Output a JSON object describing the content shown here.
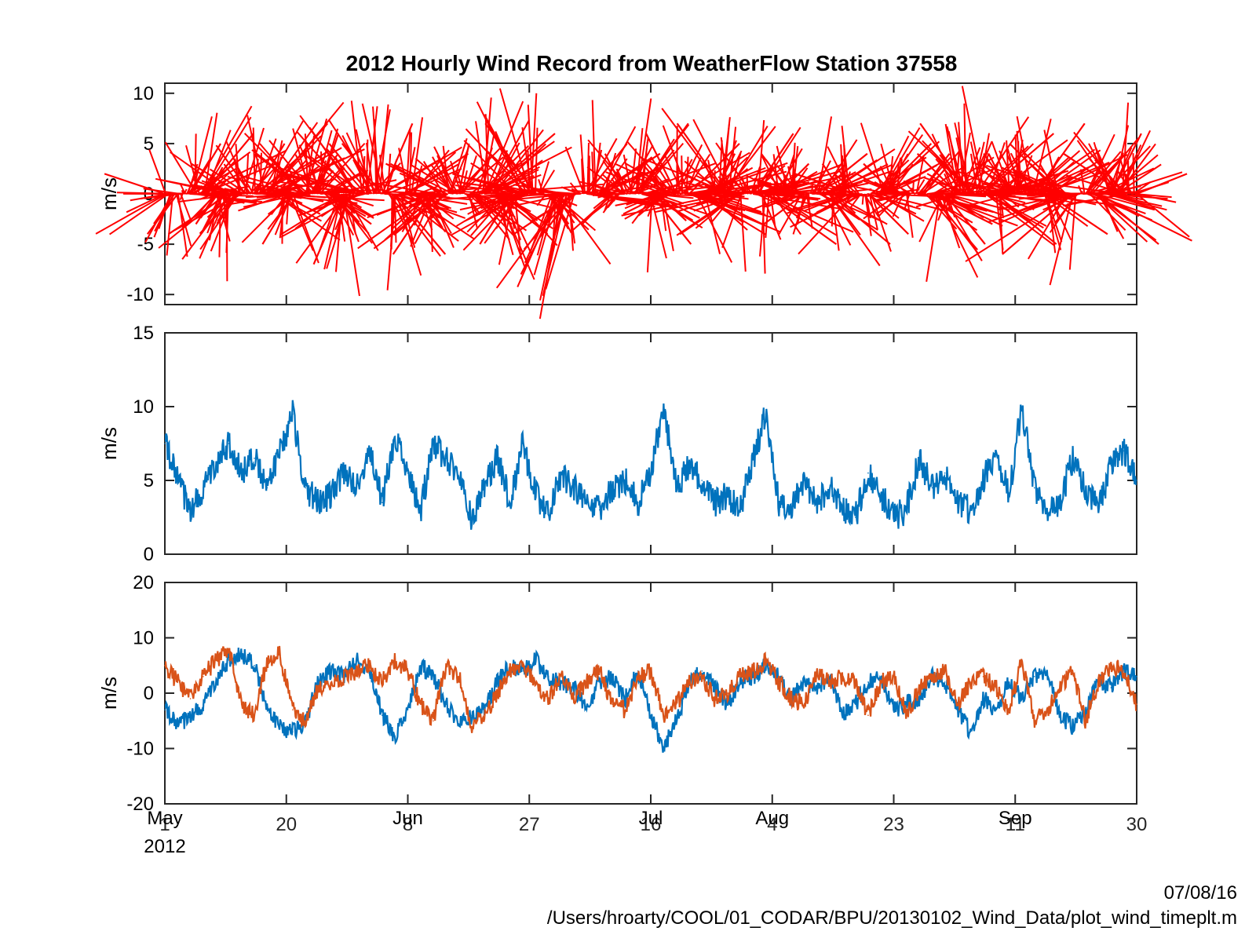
{
  "chart_data": [
    {
      "panel": "wind-vectors",
      "type": "stick",
      "title": "2012 Hourly Wind Record from WeatherFlow Station 37558",
      "ylabel": "m/s",
      "ylim": [
        -11,
        11
      ],
      "yticks": [
        -10,
        -5,
        0,
        5,
        10
      ],
      "xlim": [
        "2012-05-01",
        "2012-09-30"
      ],
      "color": "#ff0000",
      "series": [
        {
          "x": [
            "2012-05-01",
            "2012-05-03",
            "2012-05-05",
            "2012-05-07",
            "2012-05-09",
            "2012-05-11",
            "2012-05-13",
            "2012-05-15",
            "2012-05-17",
            "2012-05-19",
            "2012-05-21",
            "2012-05-23",
            "2012-05-25",
            "2012-05-27",
            "2012-05-29",
            "2012-05-31",
            "2012-06-02",
            "2012-06-04",
            "2012-06-06",
            "2012-06-08",
            "2012-06-10",
            "2012-06-12",
            "2012-06-14",
            "2012-06-16",
            "2012-06-18",
            "2012-06-20",
            "2012-06-22",
            "2012-06-24",
            "2012-06-26",
            "2012-06-28",
            "2012-06-30",
            "2012-07-02",
            "2012-07-04",
            "2012-07-06",
            "2012-07-08",
            "2012-07-10",
            "2012-07-12",
            "2012-07-14",
            "2012-07-16",
            "2012-07-18",
            "2012-07-20",
            "2012-07-22",
            "2012-07-24",
            "2012-07-26",
            "2012-07-28",
            "2012-07-30",
            "2012-08-01",
            "2012-08-03",
            "2012-08-05",
            "2012-08-07",
            "2012-08-09",
            "2012-08-11",
            "2012-08-13",
            "2012-08-15",
            "2012-08-17",
            "2012-08-19",
            "2012-08-21",
            "2012-08-23",
            "2012-08-25",
            "2012-08-27",
            "2012-08-29",
            "2012-08-31",
            "2012-09-02",
            "2012-09-04",
            "2012-09-06",
            "2012-09-08",
            "2012-09-10",
            "2012-09-12",
            "2012-09-14",
            "2012-09-16",
            "2012-09-18",
            "2012-09-20",
            "2012-09-22",
            "2012-09-24",
            "2012-09-26",
            "2012-09-28",
            "2012-09-30"
          ],
          "u": [
            -6,
            -3,
            3,
            5,
            -2,
            -6,
            -5,
            3,
            6,
            4,
            -3,
            -5,
            2,
            4,
            -3,
            -7,
            -4,
            3,
            5,
            6,
            2,
            -4,
            -6,
            1,
            4,
            7,
            5,
            -3,
            -7,
            -5,
            2,
            -4,
            -6,
            4,
            6,
            -3,
            -2,
            5,
            4,
            -4,
            -3,
            5,
            6,
            2,
            -5,
            -6,
            4,
            7,
            3,
            -3,
            -4,
            5,
            6,
            -2,
            -6,
            4,
            5,
            -3,
            -3,
            3,
            6,
            4,
            -4,
            -5,
            7,
            6,
            -2,
            -4,
            5,
            6,
            -5,
            -7,
            4,
            6,
            3,
            -6,
            5
          ],
          "v": [
            2,
            -4,
            5,
            6,
            -3,
            -4,
            3,
            5,
            7,
            -2,
            -5,
            4,
            6,
            -3,
            -7,
            2,
            5,
            7,
            -6,
            4,
            -2,
            -6,
            3,
            5,
            -3,
            6,
            -4,
            -5,
            2,
            7,
            -3,
            -8,
            -4,
            5,
            4,
            -3,
            4,
            7,
            -5,
            -2,
            6,
            5,
            -3,
            4,
            7,
            -4,
            6,
            -5,
            3,
            4,
            -3,
            4,
            -5,
            3,
            2,
            -4,
            5,
            3,
            -2,
            4,
            -3,
            -5,
            4,
            7,
            6,
            -5,
            4,
            3,
            7,
            -4,
            5,
            -6,
            4,
            -5,
            6,
            4,
            2
          ]
        }
      ]
    },
    {
      "panel": "wind-speed",
      "type": "line",
      "ylabel": "m/s",
      "ylim": [
        0,
        15
      ],
      "yticks": [
        0,
        5,
        10,
        15
      ],
      "xlim": [
        "2012-05-01",
        "2012-09-30"
      ],
      "series": [
        {
          "color": "#0072bd",
          "x": [
            "2012-05-01",
            "2012-05-03",
            "2012-05-05",
            "2012-05-07",
            "2012-05-09",
            "2012-05-11",
            "2012-05-13",
            "2012-05-15",
            "2012-05-17",
            "2012-05-19",
            "2012-05-21",
            "2012-05-23",
            "2012-05-25",
            "2012-05-27",
            "2012-05-29",
            "2012-05-31",
            "2012-06-02",
            "2012-06-04",
            "2012-06-06",
            "2012-06-08",
            "2012-06-10",
            "2012-06-12",
            "2012-06-14",
            "2012-06-16",
            "2012-06-18",
            "2012-06-20",
            "2012-06-22",
            "2012-06-24",
            "2012-06-26",
            "2012-06-28",
            "2012-06-30",
            "2012-07-02",
            "2012-07-04",
            "2012-07-06",
            "2012-07-08",
            "2012-07-10",
            "2012-07-12",
            "2012-07-14",
            "2012-07-16",
            "2012-07-18",
            "2012-07-20",
            "2012-07-22",
            "2012-07-24",
            "2012-07-26",
            "2012-07-28",
            "2012-07-30",
            "2012-08-01",
            "2012-08-03",
            "2012-08-05",
            "2012-08-07",
            "2012-08-09",
            "2012-08-11",
            "2012-08-13",
            "2012-08-15",
            "2012-08-17",
            "2012-08-19",
            "2012-08-21",
            "2012-08-23",
            "2012-08-25",
            "2012-08-27",
            "2012-08-29",
            "2012-08-31",
            "2012-09-02",
            "2012-09-04",
            "2012-09-06",
            "2012-09-08",
            "2012-09-10",
            "2012-09-12",
            "2012-09-14",
            "2012-09-16",
            "2012-09-18",
            "2012-09-20",
            "2012-09-22",
            "2012-09-24",
            "2012-09-26",
            "2012-09-28",
            "2012-09-30"
          ],
          "values": [
            7.5,
            5.0,
            3.0,
            4.5,
            6.0,
            7.5,
            5.5,
            6.5,
            4.5,
            7.0,
            9.5,
            4.5,
            3.5,
            4.0,
            5.5,
            4.5,
            7.0,
            3.5,
            8.0,
            5.5,
            3.0,
            7.5,
            6.5,
            5.0,
            2.5,
            4.5,
            6.5,
            3.5,
            7.5,
            4.0,
            3.0,
            5.5,
            4.5,
            3.5,
            3.0,
            4.5,
            5.0,
            3.5,
            5.5,
            10.0,
            4.5,
            6.0,
            5.0,
            3.5,
            4.0,
            3.0,
            6.5,
            9.5,
            3.5,
            3.0,
            5.0,
            3.5,
            4.5,
            3.0,
            2.5,
            5.5,
            4.0,
            2.5,
            3.0,
            6.5,
            4.5,
            5.5,
            3.5,
            3.0,
            5.0,
            7.0,
            4.0,
            10.0,
            4.5,
            3.0,
            3.5,
            6.5,
            4.5,
            3.0,
            6.0,
            7.0,
            5.0
          ]
        }
      ]
    },
    {
      "panel": "wind-components",
      "type": "line",
      "ylabel": "m/s",
      "ylim": [
        -20,
        20
      ],
      "yticks": [
        -20,
        -10,
        0,
        10,
        20
      ],
      "xlim": [
        "2012-05-01",
        "2012-09-30"
      ],
      "xticks": [
        "2012-05-01",
        "2012-05-20",
        "2012-06-08",
        "2012-06-27",
        "2012-07-16",
        "2012-08-04",
        "2012-08-23",
        "2012-09-11",
        "2012-09-30"
      ],
      "xticklabels": [
        "1",
        "20",
        "8",
        "27",
        "16",
        "4",
        "23",
        "11",
        "30"
      ],
      "month_labels": [
        {
          "x": "2012-05-01",
          "text": "May"
        },
        {
          "x": "2012-06-08",
          "text": "Jun"
        },
        {
          "x": "2012-07-16",
          "text": "Jul"
        },
        {
          "x": "2012-08-04",
          "text": "Aug"
        },
        {
          "x": "2012-09-11",
          "text": "Sep"
        }
      ],
      "year_label": "2012",
      "series": [
        {
          "color": "#0072bd",
          "x": [
            "2012-05-01",
            "2012-05-03",
            "2012-05-05",
            "2012-05-07",
            "2012-05-09",
            "2012-05-11",
            "2012-05-13",
            "2012-05-15",
            "2012-05-17",
            "2012-05-19",
            "2012-05-21",
            "2012-05-23",
            "2012-05-25",
            "2012-05-27",
            "2012-05-29",
            "2012-05-31",
            "2012-06-02",
            "2012-06-04",
            "2012-06-06",
            "2012-06-08",
            "2012-06-10",
            "2012-06-12",
            "2012-06-14",
            "2012-06-16",
            "2012-06-18",
            "2012-06-20",
            "2012-06-22",
            "2012-06-24",
            "2012-06-26",
            "2012-06-28",
            "2012-06-30",
            "2012-07-02",
            "2012-07-04",
            "2012-07-06",
            "2012-07-08",
            "2012-07-10",
            "2012-07-12",
            "2012-07-14",
            "2012-07-16",
            "2012-07-18",
            "2012-07-20",
            "2012-07-22",
            "2012-07-24",
            "2012-07-26",
            "2012-07-28",
            "2012-07-30",
            "2012-08-01",
            "2012-08-03",
            "2012-08-05",
            "2012-08-07",
            "2012-08-09",
            "2012-08-11",
            "2012-08-13",
            "2012-08-15",
            "2012-08-17",
            "2012-08-19",
            "2012-08-21",
            "2012-08-23",
            "2012-08-25",
            "2012-08-27",
            "2012-08-29",
            "2012-08-31",
            "2012-09-02",
            "2012-09-04",
            "2012-09-06",
            "2012-09-08",
            "2012-09-10",
            "2012-09-12",
            "2012-09-14",
            "2012-09-16",
            "2012-09-18",
            "2012-09-20",
            "2012-09-22",
            "2012-09-24",
            "2012-09-26",
            "2012-09-28",
            "2012-09-30"
          ],
          "values": [
            -3,
            -6,
            -4,
            -2,
            2,
            6,
            7,
            5,
            -3,
            -6,
            -7,
            -5,
            2,
            4,
            3,
            6,
            4,
            -4,
            -8,
            -3,
            5,
            3,
            -2,
            -6,
            -4,
            -3,
            2,
            5,
            4,
            6,
            3,
            2,
            1,
            -3,
            2,
            3,
            -1,
            4,
            -4,
            -10,
            -5,
            2,
            4,
            1,
            -2,
            2,
            3,
            5,
            3,
            -1,
            2,
            1,
            3,
            -4,
            -2,
            2,
            3,
            -3,
            -2,
            -1,
            3,
            2,
            -3,
            -7,
            -1,
            -3,
            2,
            -1,
            3,
            4,
            -4,
            -6,
            -3,
            2,
            1,
            4,
            3
          ]
        },
        {
          "color": "#d95319",
          "x": [
            "2012-05-01",
            "2012-05-03",
            "2012-05-05",
            "2012-05-07",
            "2012-05-09",
            "2012-05-11",
            "2012-05-13",
            "2012-05-15",
            "2012-05-17",
            "2012-05-19",
            "2012-05-21",
            "2012-05-23",
            "2012-05-25",
            "2012-05-27",
            "2012-05-29",
            "2012-05-31",
            "2012-06-02",
            "2012-06-04",
            "2012-06-06",
            "2012-06-08",
            "2012-06-10",
            "2012-06-12",
            "2012-06-14",
            "2012-06-16",
            "2012-06-18",
            "2012-06-20",
            "2012-06-22",
            "2012-06-24",
            "2012-06-26",
            "2012-06-28",
            "2012-06-30",
            "2012-07-02",
            "2012-07-04",
            "2012-07-06",
            "2012-07-08",
            "2012-07-10",
            "2012-07-12",
            "2012-07-14",
            "2012-07-16",
            "2012-07-18",
            "2012-07-20",
            "2012-07-22",
            "2012-07-24",
            "2012-07-26",
            "2012-07-28",
            "2012-07-30",
            "2012-08-01",
            "2012-08-03",
            "2012-08-05",
            "2012-08-07",
            "2012-08-09",
            "2012-08-11",
            "2012-08-13",
            "2012-08-15",
            "2012-08-17",
            "2012-08-19",
            "2012-08-21",
            "2012-08-23",
            "2012-08-25",
            "2012-08-27",
            "2012-08-29",
            "2012-08-31",
            "2012-09-02",
            "2012-09-04",
            "2012-09-06",
            "2012-09-08",
            "2012-09-10",
            "2012-09-12",
            "2012-09-14",
            "2012-09-16",
            "2012-09-18",
            "2012-09-20",
            "2012-09-22",
            "2012-09-24",
            "2012-09-26",
            "2012-09-28",
            "2012-09-30"
          ],
          "values": [
            5,
            2,
            -1,
            3,
            6,
            8,
            -2,
            -4,
            6,
            7,
            -3,
            -5,
            1,
            2,
            3,
            4,
            5,
            2,
            6,
            4,
            -2,
            -5,
            5,
            3,
            -6,
            -4,
            0,
            4,
            5,
            2,
            -1,
            3,
            -1,
            2,
            4,
            -2,
            -3,
            3,
            4,
            -4,
            -2,
            2,
            3,
            -1,
            0,
            3,
            4,
            6,
            2,
            -1,
            -2,
            4,
            2,
            3,
            2,
            -4,
            2,
            3,
            -4,
            1,
            3,
            4,
            -2,
            2,
            3,
            1,
            -3,
            6,
            -5,
            -3,
            1,
            4,
            -5,
            2,
            5,
            4,
            -2
          ]
        }
      ]
    }
  ],
  "footer": {
    "date": "07/08/16",
    "path": "/Users/hroarty/COOL/01_CODAR/BPU/20130102_Wind_Data/plot_wind_timeplt.m"
  }
}
